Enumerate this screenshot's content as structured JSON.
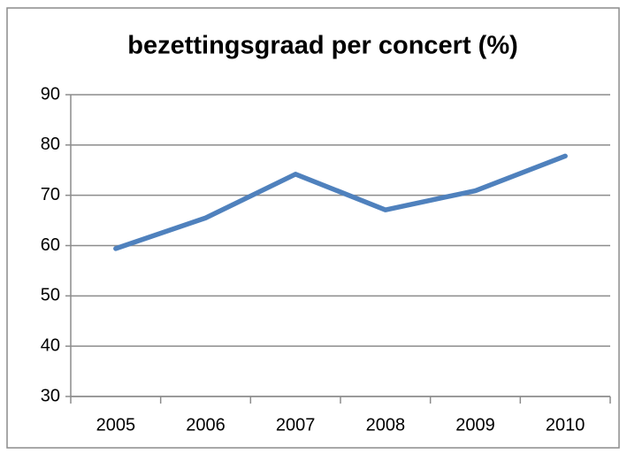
{
  "chart_data": {
    "type": "line",
    "title": "bezettingsgraad per concert (%)",
    "categories": [
      "2005",
      "2006",
      "2007",
      "2008",
      "2009",
      "2010"
    ],
    "series": [
      {
        "name": "bezettingsgraad",
        "color": "#4f81bd",
        "values": [
          59.4,
          65.5,
          74.2,
          67.1,
          70.9,
          77.8
        ]
      }
    ],
    "ylim": [
      30,
      90
    ],
    "yticks": [
      30,
      40,
      50,
      60,
      70,
      80,
      90
    ],
    "grid": true,
    "legend": false
  }
}
